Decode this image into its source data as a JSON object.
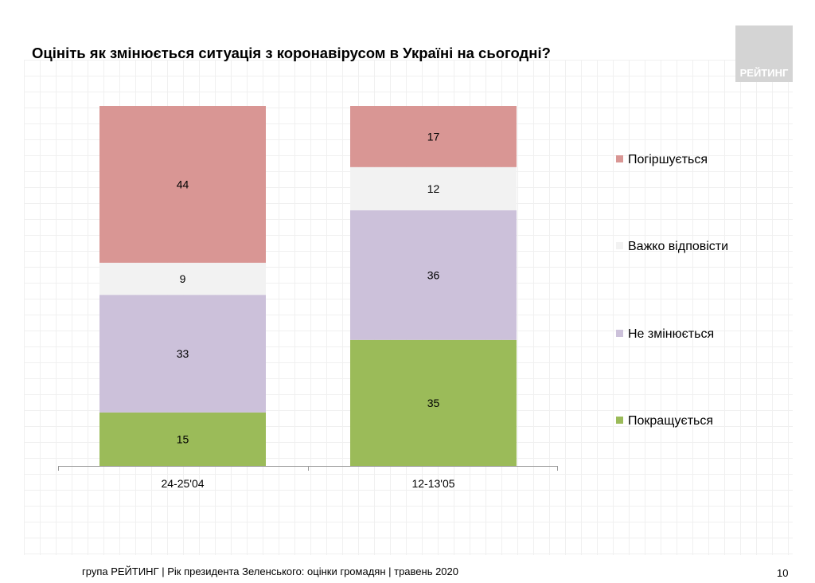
{
  "title": "Оцініть як змінюється ситуація з коронавірусом в Україні на сьогодні?",
  "logo": "РЕЙТИНГ",
  "footer": "група РЕЙТИНГ |  Рік президента Зеленського: оцінки громадян | травень 2020",
  "page_number": "10",
  "chart_data": {
    "type": "bar",
    "stacked": true,
    "categories": [
      "24-25'04",
      "12-13'05"
    ],
    "series": [
      {
        "name": "Покращується",
        "color": "#9bbb59",
        "values": [
          15,
          35
        ]
      },
      {
        "name": "Не змінюється",
        "color": "#ccc1da",
        "values": [
          33,
          36
        ]
      },
      {
        "name": "Важко відповісти",
        "color": "#f2f2f2",
        "values": [
          9,
          12
        ]
      },
      {
        "name": "Погіршується",
        "color": "#d99694",
        "values": [
          44,
          17
        ]
      }
    ],
    "legend": "right",
    "legend_order": [
      "Погіршується",
      "Важко відповісти",
      "Не змінюється",
      "Покращується"
    ]
  }
}
